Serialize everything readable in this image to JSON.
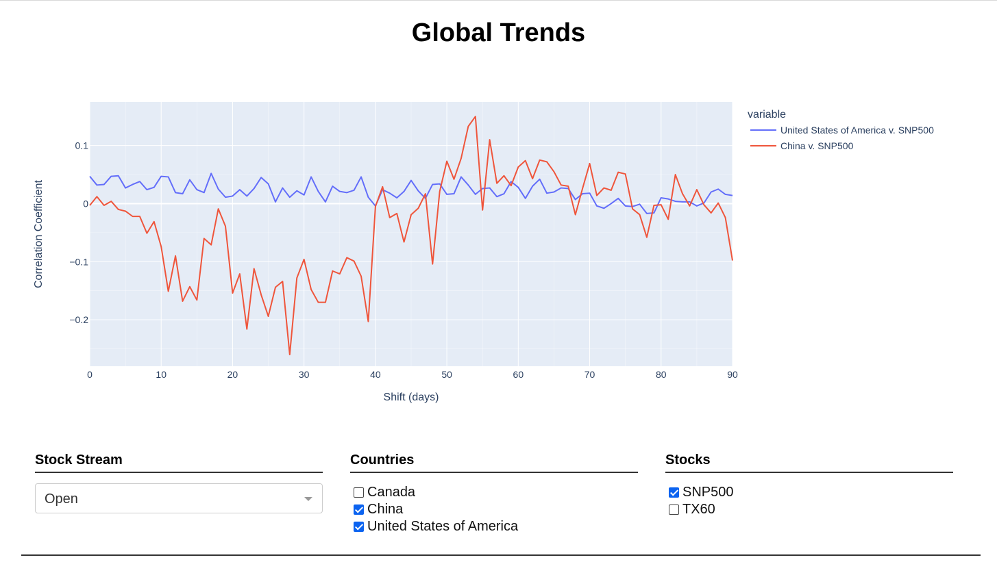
{
  "page": {
    "title": "Global Trends"
  },
  "chart_data": {
    "type": "line",
    "xlabel": "Shift (days)",
    "ylabel": "Correlation Coefficient",
    "xlim": [
      0,
      90
    ],
    "ylim": [
      -0.28,
      0.175
    ],
    "xticks": [
      0,
      10,
      20,
      30,
      40,
      50,
      60,
      70,
      80,
      90
    ],
    "yticks": [
      0.1,
      0,
      -0.1,
      -0.2
    ],
    "ytick_labels": [
      "0.1",
      "0",
      "−0.1",
      "−0.2"
    ],
    "grid": true,
    "legend_title": "variable",
    "legend_position": "right",
    "series": [
      {
        "name": "United States of America v. SNP500",
        "color": "#636efa",
        "x": [
          0,
          1,
          2,
          3,
          4,
          5,
          6,
          7,
          8,
          9,
          10,
          11,
          12,
          13,
          14,
          15,
          16,
          17,
          18,
          19,
          20,
          21,
          22,
          23,
          24,
          25,
          26,
          27,
          28,
          29,
          30,
          31,
          32,
          33,
          34,
          35,
          36,
          37,
          38,
          39,
          40,
          41,
          42,
          43,
          44,
          45,
          46,
          47,
          48,
          49,
          50,
          51,
          52,
          53,
          54,
          55,
          56,
          57,
          58,
          59,
          60,
          61,
          62,
          63,
          64,
          65,
          66,
          67,
          68,
          69,
          70,
          71,
          72,
          73,
          74,
          75,
          76,
          77,
          78,
          79,
          80,
          81,
          82,
          83,
          84,
          85,
          86,
          87,
          88,
          89,
          90
        ],
        "values": [
          0.047,
          0.032,
          0.033,
          0.047,
          0.048,
          0.027,
          0.033,
          0.038,
          0.024,
          0.028,
          0.047,
          0.046,
          0.019,
          0.017,
          0.041,
          0.024,
          0.019,
          0.052,
          0.025,
          0.011,
          0.013,
          0.024,
          0.013,
          0.026,
          0.045,
          0.034,
          0.003,
          0.027,
          0.011,
          0.022,
          0.015,
          0.046,
          0.021,
          0.003,
          0.03,
          0.021,
          0.019,
          0.023,
          0.046,
          0.011,
          -0.004,
          0.024,
          0.018,
          0.01,
          0.021,
          0.04,
          0.022,
          0.009,
          0.033,
          0.034,
          0.016,
          0.017,
          0.046,
          0.032,
          0.016,
          0.026,
          0.027,
          0.012,
          0.017,
          0.038,
          0.028,
          0.009,
          0.03,
          0.042,
          0.018,
          0.02,
          0.027,
          0.026,
          0.007,
          0.017,
          0.018,
          -0.004,
          -0.008,
          0.0,
          0.009,
          -0.004,
          -0.005,
          -0.001,
          -0.017,
          -0.016,
          0.01,
          0.008,
          0.004,
          0.003,
          0.003,
          -0.004,
          0.001,
          0.02,
          0.025,
          0.016,
          0.014
        ]
      },
      {
        "name": "China v. SNP500",
        "color": "#ef553b",
        "x": [
          0,
          1,
          2,
          3,
          4,
          5,
          6,
          7,
          8,
          9,
          10,
          11,
          12,
          13,
          14,
          15,
          16,
          17,
          18,
          19,
          20,
          21,
          22,
          23,
          24,
          25,
          26,
          27,
          28,
          29,
          30,
          31,
          32,
          33,
          34,
          35,
          36,
          37,
          38,
          39,
          40,
          41,
          42,
          43,
          44,
          45,
          46,
          47,
          48,
          49,
          50,
          51,
          52,
          53,
          54,
          55,
          56,
          57,
          58,
          59,
          60,
          61,
          62,
          63,
          64,
          65,
          66,
          67,
          68,
          69,
          70,
          71,
          72,
          73,
          74,
          75,
          76,
          77,
          78,
          79,
          80,
          81,
          82,
          83,
          84,
          85,
          86,
          87,
          88,
          89,
          90
        ],
        "values": [
          -0.003,
          0.012,
          -0.003,
          0.004,
          -0.01,
          -0.013,
          -0.022,
          -0.022,
          -0.051,
          -0.031,
          -0.074,
          -0.151,
          -0.09,
          -0.168,
          -0.143,
          -0.166,
          -0.06,
          -0.071,
          -0.009,
          -0.039,
          -0.154,
          -0.121,
          -0.216,
          -0.112,
          -0.157,
          -0.194,
          -0.144,
          -0.134,
          -0.26,
          -0.128,
          -0.096,
          -0.148,
          -0.17,
          -0.17,
          -0.116,
          -0.121,
          -0.093,
          -0.099,
          -0.125,
          -0.203,
          -0.005,
          0.029,
          -0.024,
          -0.017,
          -0.066,
          -0.019,
          -0.008,
          0.017,
          -0.104,
          0.021,
          0.073,
          0.042,
          0.078,
          0.133,
          0.15,
          -0.011,
          0.11,
          0.035,
          0.048,
          0.031,
          0.063,
          0.074,
          0.043,
          0.075,
          0.072,
          0.055,
          0.032,
          0.03,
          -0.019,
          0.026,
          0.069,
          0.014,
          0.027,
          0.023,
          0.054,
          0.051,
          -0.009,
          -0.019,
          -0.058,
          -0.003,
          -0.002,
          -0.027,
          0.05,
          0.017,
          -0.004,
          0.024,
          -0.002,
          -0.016,
          0.001,
          -0.024,
          -0.098
        ]
      }
    ]
  },
  "controls": {
    "stock_stream": {
      "title": "Stock Stream",
      "selected": "Open"
    },
    "countries": {
      "title": "Countries",
      "options": [
        {
          "label": "Canada",
          "checked": false
        },
        {
          "label": "China",
          "checked": true
        },
        {
          "label": "United States of America",
          "checked": true
        }
      ]
    },
    "stocks": {
      "title": "Stocks",
      "options": [
        {
          "label": "SNP500",
          "checked": true
        },
        {
          "label": "TX60",
          "checked": false
        }
      ]
    }
  }
}
